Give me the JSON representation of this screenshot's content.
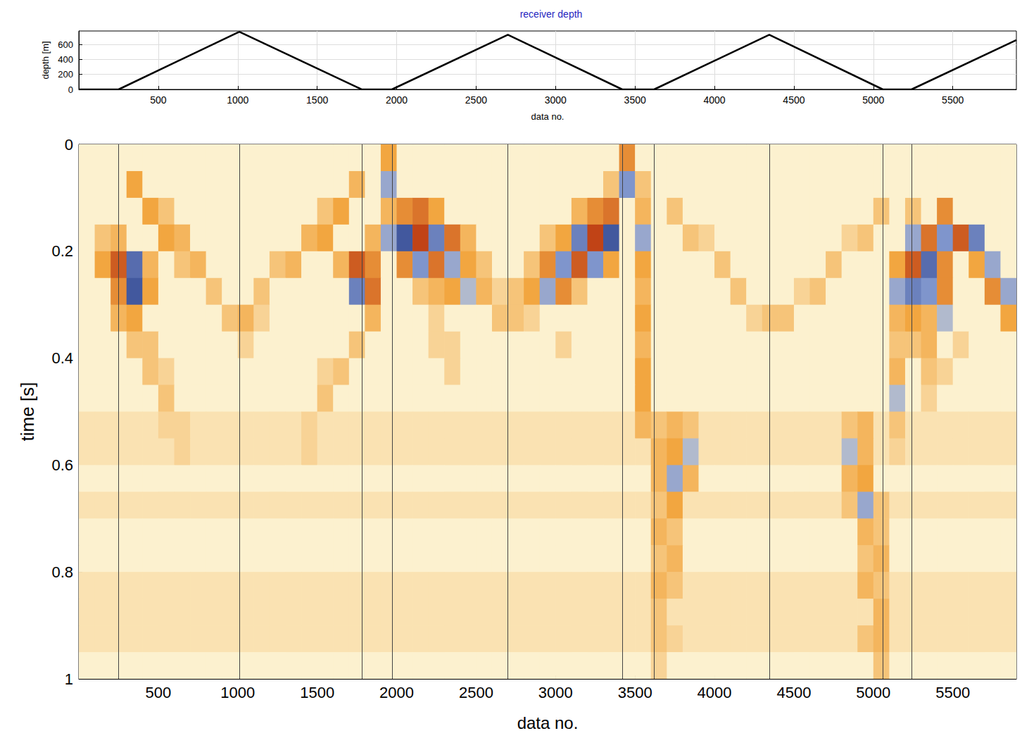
{
  "chart_data": [
    {
      "type": "line",
      "title": "receiver depth",
      "xlabel": "data no.",
      "ylabel": "depth [m]",
      "x": [
        0,
        250,
        1010,
        1780,
        1970,
        2700,
        3420,
        3620,
        4345,
        5060,
        5240,
        5900
      ],
      "values": [
        0,
        0,
        770,
        0,
        0,
        730,
        0,
        0,
        730,
        0,
        0,
        660
      ],
      "color": "#000000",
      "xlim": [
        0,
        5900
      ],
      "xticks": [
        500,
        1000,
        1500,
        2000,
        2500,
        3000,
        3500,
        4000,
        4500,
        5000,
        5500
      ],
      "ylim": [
        0,
        780
      ],
      "yticks": [
        0,
        200,
        400,
        600
      ],
      "grid": true
    },
    {
      "type": "heatmap",
      "xlabel": "data no.",
      "ylabel": "time [s]",
      "xlim": [
        0,
        5900
      ],
      "xticks": [
        500,
        1000,
        1500,
        2000,
        2500,
        3000,
        3500,
        4000,
        4500,
        5000,
        5500
      ],
      "ylim": [
        0,
        1
      ],
      "yticks": [
        0,
        0.2,
        0.4,
        0.6,
        0.8,
        1
      ],
      "grid": false,
      "vertical_lines": [
        250,
        1010,
        1780,
        1970,
        2700,
        3420,
        3620,
        4345,
        5060,
        5240
      ],
      "zlim": [
        -1,
        1
      ],
      "x_edges": [
        0,
        100,
        200,
        300,
        400,
        500,
        600,
        700,
        800,
        900,
        1000,
        1100,
        1200,
        1300,
        1400,
        1500,
        1600,
        1700,
        1800,
        1900,
        2000,
        2100,
        2200,
        2300,
        2400,
        2500,
        2600,
        2700,
        2800,
        2900,
        3000,
        3100,
        3200,
        3300,
        3400,
        3500,
        3600,
        3700,
        3800,
        3900,
        4000,
        4100,
        4200,
        4300,
        4400,
        4500,
        4600,
        4700,
        4800,
        4900,
        5000,
        5100,
        5200,
        5300,
        5400,
        5500,
        5600,
        5700,
        5800,
        5900
      ],
      "t_edges": [
        0,
        0.05,
        0.1,
        0.15,
        0.2,
        0.25,
        0.3,
        0.35,
        0.4,
        0.45,
        0.5,
        0.55,
        0.6,
        0.65,
        0.7,
        0.75,
        0.8,
        0.85,
        0.9,
        0.95,
        1
      ],
      "cells": [
        [
          0,
          0,
          0,
          0,
          0,
          0,
          0,
          0,
          0,
          0,
          0,
          0,
          0,
          0,
          0,
          0,
          0,
          0,
          0,
          0.5,
          0,
          0,
          0,
          0,
          0,
          0,
          0,
          0,
          0,
          0,
          0,
          0,
          0,
          0,
          0.6,
          0,
          0,
          0,
          0,
          0,
          0,
          0,
          0,
          0,
          0,
          0,
          0,
          0,
          0,
          0,
          0,
          0,
          0,
          0,
          0,
          0,
          0,
          0,
          0
        ],
        [
          0,
          0,
          0,
          0.5,
          0,
          0,
          0,
          0,
          0,
          0,
          0,
          0,
          0,
          0,
          0,
          0,
          0,
          0.4,
          0,
          -0.4,
          0,
          0,
          0,
          0,
          0,
          0,
          0,
          0,
          0,
          0,
          0,
          0,
          0,
          0.3,
          -0.5,
          0.3,
          0,
          0,
          0,
          0,
          0,
          0,
          0,
          0,
          0,
          0,
          0,
          0,
          0,
          0,
          0,
          0,
          0,
          0,
          0,
          0,
          0,
          0,
          0
        ],
        [
          0,
          0,
          0,
          0,
          0.5,
          0.3,
          0,
          0,
          0,
          0,
          0,
          0,
          0,
          0,
          0,
          0.3,
          0.5,
          0,
          0,
          0.4,
          0.6,
          0.7,
          0.5,
          0,
          0,
          0,
          0,
          0,
          0,
          0,
          0,
          0.4,
          0.6,
          0.7,
          0,
          0.4,
          0,
          0.3,
          0,
          0,
          0,
          0,
          0,
          0,
          0,
          0,
          0,
          0,
          0,
          0,
          0.3,
          0,
          0.3,
          0,
          0.6,
          0,
          0,
          0,
          0
        ],
        [
          0,
          0.3,
          0.4,
          0,
          0,
          0.5,
          0.4,
          0,
          0,
          0,
          0,
          0,
          0,
          0,
          0.4,
          0.5,
          0,
          0,
          0.4,
          -0.4,
          -0.8,
          0.9,
          -0.6,
          0.7,
          0.4,
          0,
          0,
          0,
          0,
          0.3,
          0.5,
          -0.6,
          0.9,
          -0.8,
          0,
          -0.4,
          0,
          0,
          0.3,
          0.2,
          0,
          0,
          0,
          0,
          0,
          0,
          0,
          0,
          0.2,
          0.3,
          0,
          0,
          -0.4,
          0.7,
          -0.5,
          0.8,
          -0.6,
          0,
          0
        ],
        [
          0,
          0.5,
          0.8,
          -0.7,
          0.4,
          0,
          0.3,
          0.4,
          0,
          0,
          0,
          0,
          0.3,
          0.4,
          0,
          0,
          0.4,
          0.8,
          0.6,
          0,
          0.6,
          -0.5,
          0.7,
          -0.4,
          0.5,
          0.3,
          0,
          0,
          0.3,
          0.6,
          -0.5,
          0.8,
          -0.5,
          0.5,
          0,
          0.5,
          0,
          0,
          0,
          0,
          0.3,
          0,
          0,
          0,
          0,
          0,
          0,
          0.3,
          0,
          0,
          0,
          0.5,
          0.8,
          -0.7,
          0.6,
          0,
          0.5,
          -0.4,
          0
        ],
        [
          0,
          0,
          0.6,
          -0.8,
          0.5,
          0,
          0,
          0,
          0.3,
          0,
          0,
          0.3,
          0,
          0,
          0,
          0,
          0,
          -0.6,
          0.7,
          0,
          0,
          0.3,
          0.4,
          0.5,
          -0.3,
          0.4,
          0.2,
          0.3,
          0.5,
          -0.4,
          0.6,
          0.3,
          0,
          0,
          0,
          0.4,
          0,
          0,
          0,
          0,
          0,
          0.3,
          0,
          0,
          0,
          0.2,
          0.3,
          0,
          0,
          0,
          0,
          -0.4,
          -0.6,
          -0.5,
          0.6,
          0,
          0,
          0.6,
          -0.4
        ],
        [
          0,
          0,
          0.4,
          0.5,
          0,
          0,
          0,
          0,
          0,
          0.3,
          0.4,
          0.2,
          0,
          0,
          0,
          0,
          0,
          0,
          0.4,
          0,
          0,
          0,
          0.2,
          0,
          0,
          0,
          0.3,
          0.3,
          0.2,
          0,
          0,
          0,
          0,
          0,
          0,
          0.5,
          0,
          0,
          0,
          0,
          0,
          0,
          0.2,
          0.3,
          0.3,
          0,
          0,
          0,
          0,
          0,
          0,
          0.4,
          0.5,
          0.4,
          -0.3,
          0,
          0,
          0,
          0.5
        ],
        [
          0,
          0,
          0,
          0.3,
          0.3,
          0,
          0,
          0,
          0,
          0,
          0.2,
          0,
          0,
          0,
          0,
          0,
          0,
          0.3,
          0,
          0,
          0,
          0,
          0.2,
          0.2,
          0,
          0,
          0,
          0,
          0,
          0,
          0.2,
          0,
          0,
          0,
          0,
          0.4,
          0,
          0,
          0,
          0,
          0,
          0,
          0,
          0,
          0,
          0,
          0,
          0,
          0,
          0,
          0,
          0.3,
          0.3,
          0.4,
          0,
          0.2,
          0,
          0,
          0
        ],
        [
          0,
          0,
          0,
          0,
          0.3,
          0.2,
          0,
          0,
          0,
          0,
          0,
          0,
          0,
          0,
          0,
          0.2,
          0.3,
          0,
          0,
          0,
          0,
          0,
          0,
          0.2,
          0,
          0,
          0,
          0,
          0,
          0,
          0,
          0,
          0,
          0,
          0,
          0.5,
          0,
          0,
          0,
          0,
          0,
          0,
          0,
          0,
          0,
          0,
          0,
          0,
          0,
          0,
          0,
          0.4,
          0,
          0.3,
          0.2,
          0,
          0,
          0,
          0
        ],
        [
          0,
          0,
          0,
          0,
          0,
          0.3,
          0,
          0,
          0,
          0,
          0,
          0,
          0,
          0,
          0,
          0.3,
          0,
          0,
          0,
          0,
          0,
          0,
          0,
          0,
          0,
          0,
          0,
          0,
          0,
          0,
          0,
          0,
          0,
          0,
          0,
          0.5,
          0,
          0,
          0,
          0,
          0,
          0,
          0,
          0,
          0,
          0,
          0,
          0,
          0,
          0,
          0,
          -0.3,
          0,
          0.2,
          0,
          0,
          0,
          0,
          0
        ],
        [
          0.1,
          0.1,
          0.1,
          0.1,
          0.1,
          0.2,
          0.2,
          0.1,
          0.1,
          0.1,
          0.1,
          0.1,
          0.1,
          0.1,
          0.2,
          0.1,
          0.1,
          0.1,
          0.1,
          0.1,
          0.1,
          0.1,
          0.1,
          0.1,
          0.1,
          0.1,
          0.1,
          0.1,
          0.1,
          0.1,
          0.1,
          0.1,
          0.1,
          0.1,
          0.1,
          0.4,
          0.3,
          0.4,
          0.3,
          0.1,
          0.1,
          0.1,
          0.1,
          0.1,
          0.1,
          0.1,
          0.1,
          0.1,
          0.3,
          0.4,
          0.1,
          0.3,
          0.1,
          0.1,
          0.1,
          0.1,
          0.1,
          0.1,
          0.1
        ],
        [
          0.1,
          0.1,
          0.1,
          0.1,
          0.1,
          0.1,
          0.2,
          0.1,
          0.1,
          0.1,
          0.1,
          0.1,
          0.1,
          0.1,
          0.2,
          0.1,
          0.1,
          0.1,
          0.1,
          0.1,
          0.1,
          0.1,
          0.1,
          0.1,
          0.1,
          0.1,
          0.1,
          0.1,
          0.1,
          0.1,
          0.1,
          0.1,
          0.1,
          0.1,
          0.1,
          0.1,
          0.4,
          0.5,
          -0.3,
          0.1,
          0.1,
          0.1,
          0.1,
          0.1,
          0.1,
          0.1,
          0.1,
          0.1,
          -0.3,
          0.4,
          0.1,
          0.2,
          0.1,
          0.1,
          0.1,
          0.1,
          0.1,
          0.1,
          0.1
        ],
        [
          0,
          0,
          0,
          0,
          0,
          0,
          0,
          0,
          0,
          0,
          0,
          0,
          0,
          0,
          0,
          0,
          0,
          0,
          0,
          0,
          0,
          0,
          0,
          0,
          0,
          0,
          0,
          0,
          0,
          0,
          0,
          0,
          0,
          0,
          0,
          0,
          0.4,
          -0.4,
          0.4,
          0,
          0,
          0,
          0,
          0,
          0,
          0,
          0,
          0,
          0.4,
          0.5,
          0,
          0,
          0,
          0,
          0,
          0,
          0,
          0,
          0
        ],
        [
          0.1,
          0.1,
          0.1,
          0.1,
          0.1,
          0.1,
          0.1,
          0.1,
          0.1,
          0.1,
          0.1,
          0.1,
          0.1,
          0.1,
          0.1,
          0.1,
          0.1,
          0.1,
          0.1,
          0.1,
          0.1,
          0.1,
          0.1,
          0.1,
          0.1,
          0.1,
          0.1,
          0.1,
          0.1,
          0.1,
          0.1,
          0.1,
          0.1,
          0.1,
          0.1,
          0.1,
          0.3,
          0.5,
          0.1,
          0.1,
          0.1,
          0.1,
          0.1,
          0.1,
          0.1,
          0.1,
          0.1,
          0.1,
          0.3,
          -0.4,
          0.3,
          0.1,
          0.1,
          0.1,
          0.1,
          0.1,
          0.1,
          0.1,
          0.1
        ],
        [
          0,
          0,
          0,
          0,
          0,
          0,
          0,
          0,
          0,
          0,
          0,
          0,
          0,
          0,
          0,
          0,
          0,
          0,
          0,
          0,
          0,
          0,
          0,
          0,
          0,
          0,
          0,
          0,
          0,
          0,
          0,
          0,
          0,
          0,
          0,
          0,
          0.4,
          0.3,
          0,
          0,
          0,
          0,
          0,
          0,
          0,
          0,
          0,
          0,
          0,
          0.4,
          0.3,
          0,
          0,
          0,
          0,
          0,
          0,
          0,
          0
        ],
        [
          0,
          0,
          0,
          0,
          0,
          0,
          0,
          0,
          0,
          0,
          0,
          0,
          0,
          0,
          0,
          0,
          0,
          0,
          0,
          0,
          0,
          0,
          0,
          0,
          0,
          0,
          0,
          0,
          0,
          0,
          0,
          0,
          0,
          0,
          0,
          0,
          0.3,
          0.4,
          0,
          0,
          0,
          0,
          0,
          0,
          0,
          0,
          0,
          0,
          0,
          0.3,
          0.4,
          0,
          0,
          0,
          0,
          0,
          0,
          0,
          0
        ],
        [
          0.1,
          0.1,
          0.1,
          0.1,
          0.1,
          0.1,
          0.1,
          0.1,
          0.1,
          0.1,
          0.1,
          0.1,
          0.1,
          0.1,
          0.1,
          0.1,
          0.1,
          0.1,
          0.1,
          0.1,
          0.1,
          0.1,
          0.1,
          0.1,
          0.1,
          0.1,
          0.1,
          0.1,
          0.1,
          0.1,
          0.1,
          0.1,
          0.1,
          0.1,
          0.1,
          0.1,
          0.4,
          0.3,
          0.1,
          0.1,
          0.1,
          0.1,
          0.1,
          0.1,
          0.1,
          0.1,
          0.1,
          0.1,
          0.1,
          0.4,
          0.3,
          0.1,
          0.1,
          0.1,
          0.1,
          0.1,
          0.1,
          0.1,
          0.1
        ],
        [
          0.1,
          0.1,
          0.1,
          0.1,
          0.1,
          0.1,
          0.1,
          0.1,
          0.1,
          0.1,
          0.1,
          0.1,
          0.1,
          0.1,
          0.1,
          0.1,
          0.1,
          0.1,
          0.1,
          0.1,
          0.1,
          0.1,
          0.1,
          0.1,
          0.1,
          0.1,
          0.1,
          0.1,
          0.1,
          0.1,
          0.1,
          0.1,
          0.1,
          0.1,
          0.1,
          0.1,
          0.3,
          0.1,
          0.1,
          0.1,
          0.1,
          0.1,
          0.1,
          0.1,
          0.1,
          0.1,
          0.1,
          0.1,
          0.1,
          0.1,
          0.4,
          0.1,
          0.1,
          0.1,
          0.1,
          0.1,
          0.1,
          0.1,
          0.1
        ],
        [
          0.1,
          0.1,
          0.1,
          0.1,
          0.1,
          0.1,
          0.1,
          0.1,
          0.1,
          0.1,
          0.1,
          0.1,
          0.1,
          0.1,
          0.1,
          0.1,
          0.1,
          0.1,
          0.1,
          0.1,
          0.1,
          0.1,
          0.1,
          0.1,
          0.1,
          0.1,
          0.1,
          0.1,
          0.1,
          0.1,
          0.1,
          0.1,
          0.1,
          0.1,
          0.1,
          0.1,
          0.3,
          0.2,
          0.1,
          0.1,
          0.1,
          0.1,
          0.1,
          0.1,
          0.1,
          0.1,
          0.1,
          0.1,
          0.1,
          0.3,
          0.4,
          0.1,
          0.1,
          0.1,
          0.1,
          0.1,
          0.1,
          0.1,
          0.1
        ],
        [
          0,
          0,
          0,
          0,
          0,
          0,
          0,
          0,
          0,
          0,
          0,
          0,
          0,
          0,
          0,
          0,
          0,
          0,
          0,
          0,
          0,
          0,
          0,
          0,
          0,
          0,
          0,
          0,
          0,
          0,
          0,
          0,
          0,
          0,
          0,
          0,
          0.2,
          0,
          0,
          0,
          0,
          0,
          0,
          0,
          0,
          0,
          0,
          0,
          0,
          0,
          0.3,
          0,
          0,
          0,
          0,
          0,
          0,
          0,
          0
        ]
      ]
    }
  ]
}
